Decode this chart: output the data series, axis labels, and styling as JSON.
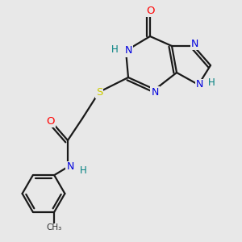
{
  "background_color": "#e8e8e8",
  "bond_color": "#1a1a1a",
  "atom_colors": {
    "O": "#ff0000",
    "N": "#0000dd",
    "S": "#cccc00",
    "H": "#008080",
    "C": "#1a1a1a"
  },
  "figsize": [
    3.0,
    3.0
  ],
  "dpi": 100
}
